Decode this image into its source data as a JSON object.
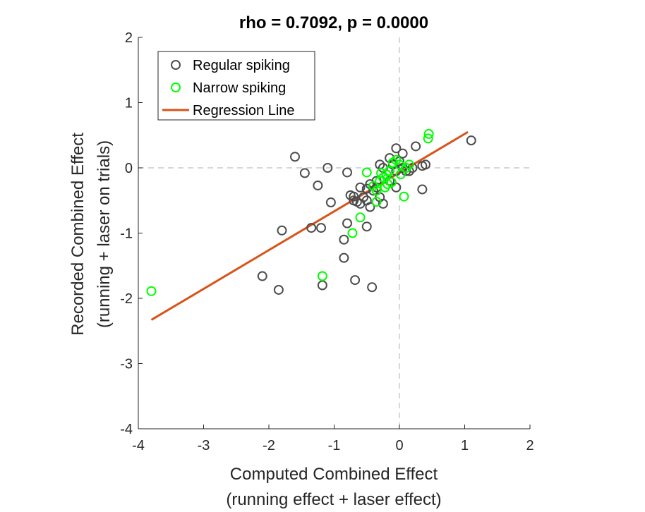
{
  "chart_data": {
    "type": "scatter",
    "title": "rho = 0.7092, p = 0.0000",
    "xlabel": [
      "Computed Combined Effect",
      "(running effect +  laser effect)"
    ],
    "ylabel": [
      "Recorded Combined Effect",
      "(running + laser on trials)"
    ],
    "xlim": [
      -4,
      2
    ],
    "ylim": [
      -4,
      2
    ],
    "xticks": [
      -4,
      -3,
      -2,
      -1,
      0,
      1,
      2
    ],
    "yticks": [
      -4,
      -3,
      -2,
      -1,
      0,
      1,
      2
    ],
    "reference_lines": {
      "x": 0,
      "y": 0,
      "style": "dashed"
    },
    "grid": false,
    "legend_position": "top-left",
    "series": [
      {
        "name": "Regular spiking",
        "marker": "circle",
        "color": "#4d4d4d",
        "points": [
          [
            -1.6,
            0.17
          ],
          [
            -1.45,
            -0.08
          ],
          [
            -1.1,
            0.0
          ],
          [
            -1.25,
            -0.27
          ],
          [
            -0.8,
            -0.07
          ],
          [
            -1.05,
            -0.53
          ],
          [
            -0.75,
            -0.42
          ],
          [
            -0.7,
            -0.44
          ],
          [
            -0.65,
            -0.52
          ],
          [
            -0.6,
            -0.3
          ],
          [
            -0.55,
            -0.45
          ],
          [
            -0.5,
            -0.5
          ],
          [
            -0.45,
            -0.6
          ],
          [
            -0.4,
            -0.35
          ],
          [
            -0.35,
            -0.2
          ],
          [
            -0.3,
            0.05
          ],
          [
            -0.25,
            0.0
          ],
          [
            -0.2,
            -0.1
          ],
          [
            -0.15,
            0.15
          ],
          [
            -0.1,
            0.05
          ],
          [
            -0.05,
            0.3
          ],
          [
            0.0,
            0.1
          ],
          [
            0.05,
            0.22
          ],
          [
            0.1,
            0.0
          ],
          [
            0.15,
            -0.05
          ],
          [
            0.2,
            0.0
          ],
          [
            0.25,
            0.33
          ],
          [
            0.35,
            0.03
          ],
          [
            0.4,
            0.05
          ],
          [
            0.35,
            -0.33
          ],
          [
            -0.5,
            -0.32
          ],
          [
            -0.45,
            -0.25
          ],
          [
            -0.3,
            -0.45
          ],
          [
            -0.35,
            -0.3
          ],
          [
            -0.05,
            -0.3
          ],
          [
            -0.25,
            -0.55
          ],
          [
            -0.15,
            -0.2
          ],
          [
            -0.7,
            -0.5
          ],
          [
            -0.6,
            -0.55
          ],
          [
            -0.8,
            -0.85
          ],
          [
            -0.5,
            -0.9
          ],
          [
            -0.85,
            -1.1
          ],
          [
            -0.85,
            -1.38
          ],
          [
            -1.35,
            -0.92
          ],
          [
            -1.2,
            -0.92
          ],
          [
            -1.8,
            -0.96
          ],
          [
            -2.1,
            -1.66
          ],
          [
            -1.85,
            -1.87
          ],
          [
            -1.18,
            -1.8
          ],
          [
            -0.68,
            -1.72
          ],
          [
            -0.42,
            -1.83
          ],
          [
            1.1,
            0.42
          ],
          [
            0.1,
            -0.05
          ],
          [
            0.05,
            0.0
          ],
          [
            -0.05,
            -0.05
          ]
        ]
      },
      {
        "name": "Narrow spiking",
        "marker": "circle",
        "color": "#00ff00",
        "points": [
          [
            -3.8,
            -1.89
          ],
          [
            -1.18,
            -1.66
          ],
          [
            -0.72,
            -1.0
          ],
          [
            -0.6,
            -0.76
          ],
          [
            -0.35,
            -0.52
          ],
          [
            -0.5,
            -0.07
          ],
          [
            -0.25,
            -0.15
          ],
          [
            -0.2,
            -0.1
          ],
          [
            -0.15,
            -0.05
          ],
          [
            -0.1,
            0.08
          ],
          [
            -0.05,
            0.12
          ],
          [
            0.0,
            0.05
          ],
          [
            -0.3,
            -0.2
          ],
          [
            -0.22,
            -0.3
          ],
          [
            -0.18,
            -0.25
          ],
          [
            0.45,
            0.52
          ],
          [
            0.44,
            0.45
          ],
          [
            0.07,
            -0.44
          ],
          [
            -0.4,
            -0.28
          ],
          [
            -0.28,
            -0.08
          ],
          [
            -0.12,
            -0.22
          ],
          [
            0.02,
            -0.1
          ],
          [
            -0.35,
            -0.35
          ],
          [
            0.1,
            0.0
          ],
          [
            0.15,
            0.05
          ]
        ]
      },
      {
        "name": "Regression Line",
        "type": "line",
        "color": "#d95319",
        "points": [
          [
            -3.8,
            -2.33
          ],
          [
            1.05,
            0.55
          ]
        ]
      }
    ]
  }
}
